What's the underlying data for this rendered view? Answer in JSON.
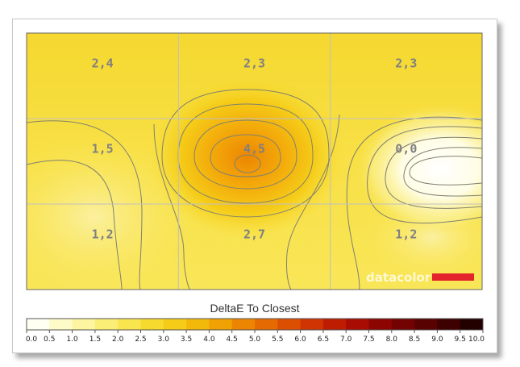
{
  "chart_data": {
    "type": "heatmap",
    "title": "DeltaE To Closest",
    "grid": true,
    "rows": 3,
    "cols": 3,
    "cells": [
      [
        "2,4",
        "2,3",
        "2,3"
      ],
      [
        "1,5",
        "4,5",
        "0,0"
      ],
      [
        "1,2",
        "2,7",
        "1,2"
      ]
    ],
    "values": [
      [
        2.4,
        2.3,
        2.3
      ],
      [
        1.5,
        4.5,
        0.0
      ],
      [
        1.2,
        2.7,
        1.2
      ]
    ],
    "legend": {
      "ticks": [
        "0.0",
        "0.5",
        "1.0",
        "1.5",
        "2.0",
        "2.5",
        "3.0",
        "3.5",
        "4.0",
        "4.5",
        "5.0",
        "5.5",
        "6.0",
        "6.5",
        "7.0",
        "7.5",
        "8.0",
        "8.5",
        "9.0",
        "9.5",
        "10.0"
      ],
      "colors": [
        "#fffff2",
        "#fefbc9",
        "#fdf5a0",
        "#fbee77",
        "#f9e54e",
        "#f7da2e",
        "#f5cc18",
        "#f3b90a",
        "#f0a104",
        "#ec8602",
        "#e56a02",
        "#dc4e02",
        "#cf3402",
        "#bf1d02",
        "#a80c02",
        "#8d0502",
        "#720302",
        "#580202",
        "#3e0101",
        "#230101"
      ]
    },
    "brand": {
      "text": "datacolor",
      "accent_color": "#e3242b"
    }
  }
}
